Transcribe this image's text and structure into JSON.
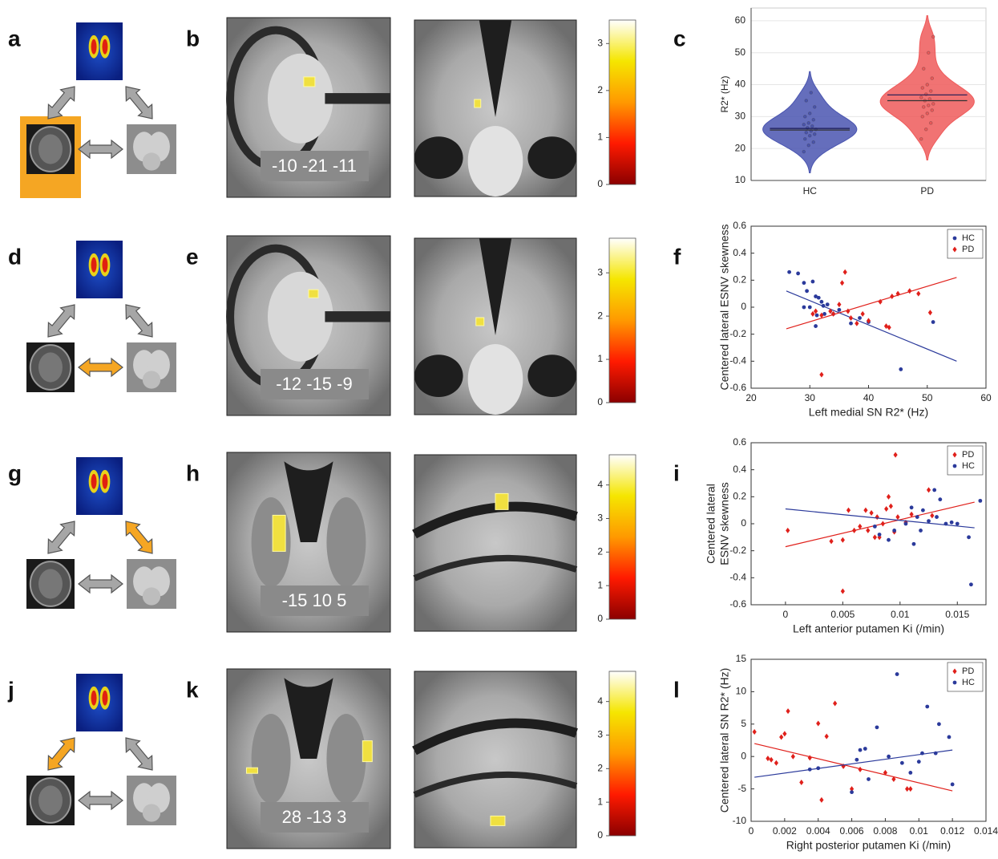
{
  "rows": [
    {
      "labels": [
        "a",
        "b",
        "c"
      ],
      "coordinate": "-10 -21 -11"
    },
    {
      "labels": [
        "d",
        "e",
        "f"
      ],
      "coordinate": "-12 -15 -9"
    },
    {
      "labels": [
        "g",
        "h",
        "i"
      ],
      "coordinate": "-15 10 5"
    },
    {
      "labels": [
        "j",
        "k",
        "l"
      ],
      "coordinate": "28 -13 3"
    }
  ],
  "chart_data": [
    {
      "type": "colorbar",
      "ylim": [
        0,
        3.5
      ],
      "yticks": [
        0,
        1,
        2,
        3
      ],
      "colors": [
        "#8b0000",
        "#ff1a00",
        "#ff9900",
        "#f5e600",
        "#ffffff"
      ]
    },
    {
      "type": "violin",
      "ylabel": "R2* (Hz)",
      "categories": [
        "HC",
        "PD"
      ],
      "ylim": [
        10,
        64
      ],
      "yticks": [
        10,
        20,
        30,
        40,
        50,
        60
      ],
      "grid": true,
      "series": [
        {
          "name": "HC",
          "color": "#4a55b0",
          "values": [
            19,
            21,
            22,
            23,
            24,
            24.5,
            25,
            25.5,
            26,
            26.5,
            27,
            27.5,
            28,
            29,
            30,
            31,
            33,
            35,
            37.5
          ],
          "mean": 26.3,
          "median": 25.8
        },
        {
          "name": "PD",
          "color": "#ef5b5b",
          "values": [
            23,
            26,
            28,
            30,
            31,
            32,
            33,
            33.5,
            34,
            35,
            35.5,
            36,
            37,
            38,
            39,
            40,
            42,
            45,
            50,
            55
          ],
          "mean": 36.8,
          "median": 35
        }
      ]
    },
    {
      "type": "colorbar",
      "ylim": [
        0,
        3.8
      ],
      "yticks": [
        0,
        1,
        2,
        3
      ],
      "colors": [
        "#8b0000",
        "#ff1a00",
        "#ff9900",
        "#f5e600",
        "#ffffff"
      ]
    },
    {
      "type": "scatter",
      "xlabel": "Left medial SN R2* (Hz)",
      "ylabel": [
        "Centered lateral ESNV skewness"
      ],
      "xlim": [
        20,
        60
      ],
      "xticks": [
        20,
        30,
        40,
        50,
        60
      ],
      "ylim": [
        -0.6,
        0.6
      ],
      "yticks": [
        -0.6,
        -0.4,
        -0.2,
        0,
        0.2,
        0.4,
        0.6
      ],
      "legend": "upper right",
      "series": [
        {
          "name": "HC",
          "color": "#2b3a9b",
          "marker": "circle",
          "x": [
            26.5,
            28,
            29,
            29.5,
            30.5,
            31,
            31.5,
            32,
            32.3,
            33,
            30,
            31.2,
            32.5,
            34,
            35,
            37,
            38.5,
            40,
            31,
            45.5,
            51,
            29
          ],
          "values": [
            0.26,
            0.25,
            0.18,
            0.12,
            0.19,
            0.08,
            0.07,
            0.04,
            0.01,
            0.02,
            0,
            -0.06,
            -0.05,
            -0.05,
            -0.02,
            -0.12,
            -0.08,
            -0.11,
            -0.14,
            -0.46,
            -0.11,
            0
          ],
          "fit": {
            "x": [
              26,
              55
            ],
            "y": [
              0.12,
              -0.4
            ]
          }
        },
        {
          "name": "PD",
          "color": "#e0201b",
          "marker": "diamond",
          "x": [
            30.5,
            31,
            32,
            33.5,
            34,
            35,
            35.5,
            36,
            36.5,
            37,
            38,
            39,
            40,
            42,
            43,
            43.5,
            44,
            45,
            47,
            48.5,
            50.5,
            32
          ],
          "values": [
            -0.05,
            -0.03,
            -0.06,
            -0.03,
            -0.05,
            0.02,
            0.18,
            0.26,
            -0.03,
            -0.08,
            -0.12,
            -0.05,
            -0.1,
            0.04,
            -0.14,
            -0.15,
            0.08,
            0.1,
            0.12,
            0.1,
            -0.04,
            -0.5
          ],
          "fit": {
            "x": [
              26,
              55
            ],
            "y": [
              -0.16,
              0.22
            ]
          }
        }
      ]
    },
    {
      "type": "colorbar",
      "ylim": [
        0,
        4.9
      ],
      "yticks": [
        0,
        1,
        2,
        3,
        4
      ],
      "colors": [
        "#8b0000",
        "#ff1a00",
        "#ff9900",
        "#f5e600",
        "#ffffff"
      ]
    },
    {
      "type": "scatter",
      "xlabel": "Left anterior putamen Ki (/min)",
      "ylabel": [
        "Centered lateral",
        "ESNV skewness"
      ],
      "xlim": [
        -0.003,
        0.0175
      ],
      "xticks": [
        0,
        0.005,
        0.01,
        0.015
      ],
      "ylim": [
        -0.6,
        0.6
      ],
      "yticks": [
        -0.6,
        -0.4,
        -0.2,
        0,
        0.2,
        0.4,
        0.6
      ],
      "legend": "upper right",
      "series": [
        {
          "name": "PD",
          "color": "#e0201b",
          "marker": "diamond",
          "x": [
            0.0002,
            0.004,
            0.005,
            0.0055,
            0.006,
            0.0065,
            0.007,
            0.0072,
            0.0075,
            0.0078,
            0.008,
            0.0082,
            0.0085,
            0.0088,
            0.009,
            0.0092,
            0.0095,
            0.0096,
            0.0098,
            0.0105,
            0.011,
            0.0125,
            0.0128,
            0.005
          ],
          "values": [
            -0.05,
            -0.13,
            -0.5,
            0.1,
            -0.05,
            -0.02,
            0.1,
            -0.05,
            0.08,
            -0.1,
            0.05,
            -0.1,
            0,
            0.11,
            0.2,
            0.13,
            -0.06,
            0.51,
            0.05,
            0.01,
            0.07,
            0.25,
            0.06,
            -0.12
          ],
          "fit": {
            "x": [
              0,
              0.0165
            ],
            "y": [
              -0.17,
              0.16
            ]
          }
        },
        {
          "name": "HC",
          "color": "#2b3a9b",
          "marker": "circle",
          "x": [
            0.0078,
            0.0082,
            0.009,
            0.0095,
            0.0105,
            0.011,
            0.0112,
            0.0115,
            0.012,
            0.0125,
            0.013,
            0.0132,
            0.0135,
            0.014,
            0.0145,
            0.015,
            0.016,
            0.0162,
            0.017,
            0.0118
          ],
          "values": [
            -0.02,
            -0.08,
            -0.12,
            -0.05,
            0,
            0.12,
            -0.15,
            0.05,
            0.1,
            0.02,
            0.25,
            0.05,
            0.18,
            0,
            0.01,
            0,
            -0.1,
            -0.45,
            0.17,
            -0.05
          ],
          "fit": {
            "x": [
              0,
              0.0165
            ],
            "y": [
              0.11,
              -0.03
            ]
          }
        }
      ]
    },
    {
      "type": "colorbar",
      "ylim": [
        0,
        4.9
      ],
      "yticks": [
        0,
        1,
        2,
        3,
        4
      ],
      "colors": [
        "#8b0000",
        "#ff1a00",
        "#ff9900",
        "#f5e600",
        "#ffffff"
      ]
    },
    {
      "type": "scatter",
      "xlabel": "Right posterior putamen Ki (/min)",
      "ylabel": [
        "Centered lateral SN R2* (Hz)"
      ],
      "xlim": [
        0,
        0.014
      ],
      "xticks": [
        0,
        0.002,
        0.004,
        0.006,
        0.008,
        0.01,
        0.012,
        0.014
      ],
      "ylim": [
        -10,
        15
      ],
      "yticks": [
        -10,
        -5,
        0,
        5,
        10,
        15
      ],
      "legend": "upper right",
      "series": [
        {
          "name": "PD",
          "color": "#e0201b",
          "marker": "diamond",
          "x": [
            0.0002,
            0.001,
            0.0012,
            0.0015,
            0.0018,
            0.002,
            0.0022,
            0.0025,
            0.003,
            0.0035,
            0.004,
            0.0042,
            0.0045,
            0.005,
            0.0055,
            0.006,
            0.0065,
            0.008,
            0.0085,
            0.0093,
            0.0095
          ],
          "values": [
            3.8,
            -0.3,
            -0.5,
            -1,
            3,
            3.5,
            7,
            0,
            -4,
            -0.2,
            5.1,
            -6.7,
            3.1,
            8.2,
            -1.5,
            -5,
            -2,
            -2.5,
            -3.5,
            -5,
            -5
          ],
          "fit": {
            "x": [
              0.0002,
              0.012
            ],
            "y": [
              2,
              -5.3
            ]
          }
        },
        {
          "name": "HC",
          "color": "#2b3a9b",
          "marker": "circle",
          "x": [
            0.0035,
            0.004,
            0.006,
            0.0063,
            0.0065,
            0.0068,
            0.007,
            0.0075,
            0.0082,
            0.0087,
            0.009,
            0.0095,
            0.01,
            0.0102,
            0.0105,
            0.011,
            0.0112,
            0.0118,
            0.012
          ],
          "values": [
            -2,
            -1.8,
            -5.5,
            -0.5,
            1,
            1.2,
            -3.5,
            4.5,
            0,
            12.7,
            -1,
            -2.5,
            -0.8,
            0.5,
            7.7,
            0.5,
            5,
            3,
            -4.3
          ],
          "fit": {
            "x": [
              0.0002,
              0.012
            ],
            "y": [
              -3.2,
              1
            ]
          }
        }
      ]
    }
  ]
}
